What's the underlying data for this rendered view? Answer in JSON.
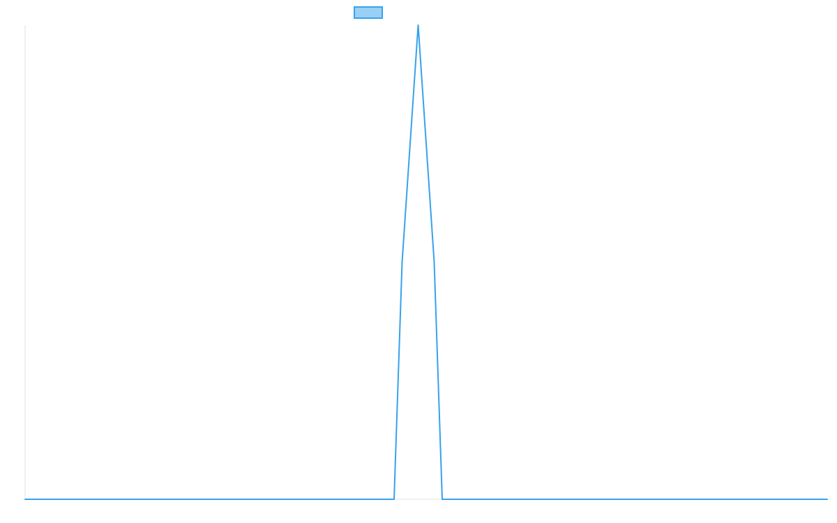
{
  "chart_data": {
    "type": "line",
    "title": "",
    "xlabel": "",
    "ylabel": "",
    "grid": false,
    "legend_position": "top-center",
    "colors": {
      "series_stroke": "#36a2eb",
      "series_fill": "#9ad0f5",
      "axis": "#e3e3e3",
      "background": "#ffffff"
    },
    "xlim": [
      0,
      50
    ],
    "ylim": [
      0,
      1
    ],
    "series": [
      {
        "x": [
          0,
          1,
          2,
          3,
          4,
          5,
          6,
          7,
          8,
          9,
          10,
          11,
          12,
          13,
          14,
          15,
          16,
          17,
          18,
          19,
          20,
          21,
          22,
          23,
          22.5,
          23.5,
          24.5,
          25.5,
          26,
          27,
          28,
          29,
          30,
          31,
          32,
          33,
          34,
          35,
          36,
          37,
          38,
          39,
          40,
          41,
          42,
          43,
          44,
          45,
          46,
          47,
          48,
          49,
          50
        ],
        "values": [
          0,
          0,
          0,
          0,
          0,
          0,
          0,
          0,
          0,
          0,
          0,
          0,
          0,
          0,
          0,
          0,
          0,
          0,
          0,
          0,
          0,
          0,
          0,
          0,
          0,
          0.5,
          1,
          0.5,
          0,
          0,
          0,
          0,
          0,
          0,
          0,
          0,
          0,
          0,
          0,
          0,
          0,
          0,
          0,
          0,
          0,
          0,
          0,
          0,
          0,
          0,
          0,
          0,
          0
        ]
      }
    ]
  }
}
